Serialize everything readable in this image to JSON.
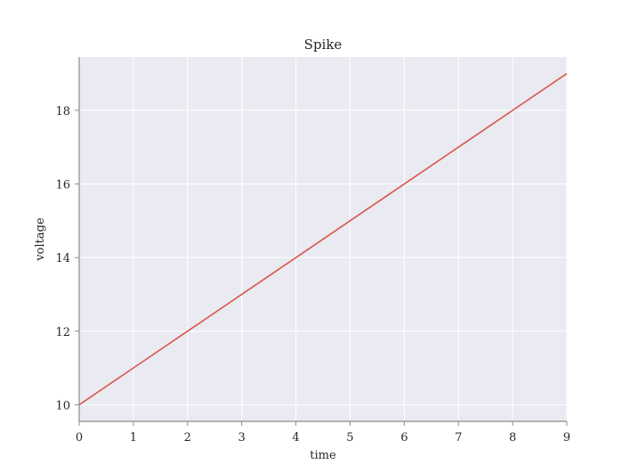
{
  "chart_data": {
    "type": "line",
    "title": "Spike",
    "xlabel": "time",
    "ylabel": "voltage",
    "x": [
      0,
      1,
      2,
      3,
      4,
      5,
      6,
      7,
      8,
      9
    ],
    "series": [
      {
        "values": [
          10,
          11,
          12,
          13,
          14,
          15,
          16,
          17,
          18,
          19
        ],
        "color": "#d9574a"
      }
    ],
    "xlim": [
      0,
      9
    ],
    "ylim": [
      9.55,
      19.45
    ],
    "xticks": [
      0,
      1,
      2,
      3,
      4,
      5,
      6,
      7,
      8,
      9
    ],
    "yticks": [
      10,
      12,
      14,
      16,
      18
    ],
    "grid": true,
    "background": "#eaeaf2"
  }
}
